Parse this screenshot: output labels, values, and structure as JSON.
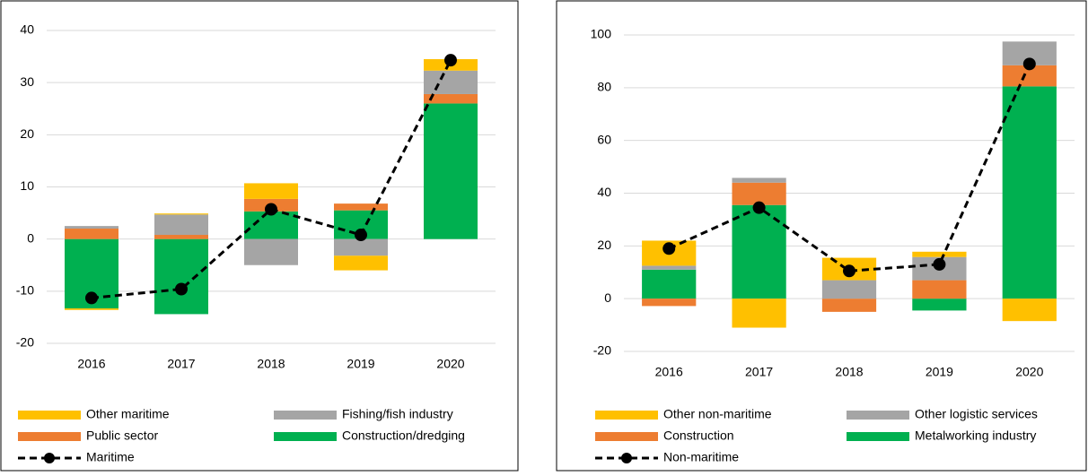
{
  "chart_data": [
    {
      "type": "bar",
      "stacked": true,
      "categories": [
        "2016",
        "2017",
        "2018",
        "2019",
        "2020"
      ],
      "ylim": [
        -20,
        40
      ],
      "yticks": [
        -20,
        -10,
        0,
        10,
        20,
        30,
        40
      ],
      "grid": true,
      "series": [
        {
          "name": "Other maritime",
          "color": "#ffc000",
          "values": [
            -0.3,
            0.2,
            3.0,
            -2.8,
            2.2
          ]
        },
        {
          "name": "Fishing/fish industry",
          "color": "#a5a5a5",
          "values": [
            0.5,
            3.9,
            -5.0,
            -3.2,
            4.5
          ]
        },
        {
          "name": "Public sector",
          "color": "#ed7d31",
          "values": [
            2.0,
            0.8,
            2.4,
            1.3,
            1.8
          ]
        },
        {
          "name": "Construction/dredging",
          "color": "#00b050",
          "values": [
            -13.3,
            -14.4,
            5.3,
            5.5,
            26.0
          ]
        },
        {
          "name": "Maritime",
          "type": "line",
          "color": "#000000",
          "values": [
            -11.3,
            -9.6,
            5.7,
            0.8,
            34.3
          ]
        }
      ]
    },
    {
      "type": "bar",
      "stacked": true,
      "categories": [
        "2016",
        "2017",
        "2018",
        "2019",
        "2020"
      ],
      "ylim": [
        -20,
        100
      ],
      "yticks": [
        -20,
        0,
        20,
        40,
        60,
        80,
        100
      ],
      "grid": true,
      "series": [
        {
          "name": "Other non-maritime",
          "color": "#ffc000",
          "values": [
            9.5,
            -11.0,
            8.5,
            2.0,
            -8.5
          ]
        },
        {
          "name": "Other logistic services",
          "color": "#a5a5a5",
          "values": [
            1.5,
            1.8,
            7.0,
            8.8,
            9.0
          ]
        },
        {
          "name": "Construction",
          "color": "#ed7d31",
          "values": [
            -2.8,
            8.5,
            -5.0,
            7.0,
            8.0
          ]
        },
        {
          "name": "Metalworking industry",
          "color": "#00b050",
          "values": [
            11.0,
            35.5,
            0,
            -4.5,
            80.5
          ]
        },
        {
          "name": "Non-maritime",
          "type": "line",
          "color": "#000000",
          "values": [
            19.0,
            34.5,
            10.5,
            13.0,
            89.0
          ]
        }
      ]
    }
  ]
}
